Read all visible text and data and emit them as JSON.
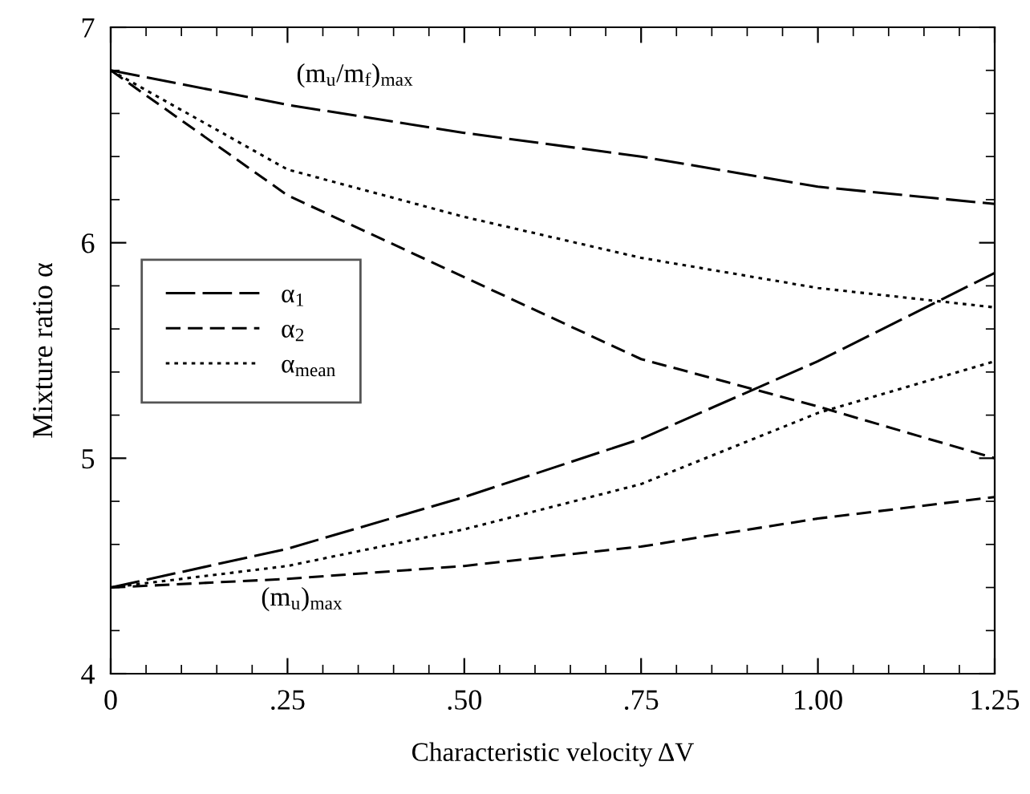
{
  "chart_data": {
    "type": "line",
    "xlabel": "Characteristic velocity ΔV",
    "ylabel": "Mixture ratio α",
    "x": [
      0,
      0.25,
      0.5,
      0.75,
      1.0,
      1.25
    ],
    "series": [
      {
        "name": "α$_{1}$",
        "color": "#000000",
        "line_style": "long_dashed",
        "values": [
          6.8,
          6.64,
          6.51,
          6.4,
          6.26,
          6.18
        ]
      },
      {
        "name": "α$_{2}$",
        "color": "#000000",
        "line_style": "dashed",
        "values": [
          6.8,
          6.22,
          5.84,
          5.46,
          5.24,
          5.0
        ]
      },
      {
        "name": "α$_{mean}$",
        "color": "#000000",
        "line_style": "dotted",
        "values": [
          6.8,
          6.34,
          6.12,
          5.93,
          5.79,
          5.7
        ]
      },
      {
        "color": "#000000",
        "line_style": "long_dashed",
        "values": [
          4.4,
          4.58,
          4.82,
          5.09,
          5.45,
          5.86
        ]
      },
      {
        "color": "#000000",
        "line_style": "dashed",
        "values": [
          4.4,
          4.44,
          4.5,
          4.59,
          4.72,
          4.82
        ]
      },
      {
        "color": "#000000",
        "line_style": "dotted",
        "values": [
          4.4,
          4.5,
          4.67,
          4.88,
          5.21,
          5.45
        ]
      }
    ],
    "xlim": [
      0,
      1.25
    ],
    "ylim": [
      4,
      7
    ],
    "xticks": [
      {
        "value": 0,
        "label": "0"
      },
      {
        "value": 0.25,
        "label": ".25"
      },
      {
        "value": 0.5,
        "label": ".50"
      },
      {
        "value": 0.75,
        "label": ".75"
      },
      {
        "value": 1.0,
        "label": "1.00"
      },
      {
        "value": 1.25,
        "label": "1.25"
      }
    ],
    "yticks": [
      4,
      5,
      6,
      7
    ],
    "annotations": [
      "(m$_{u}$/m$_{f}$)$_{max}$",
      "(m$_{u}$)$_{max}$"
    ],
    "legend": "left",
    "grid": false,
    "marker": "none"
  }
}
